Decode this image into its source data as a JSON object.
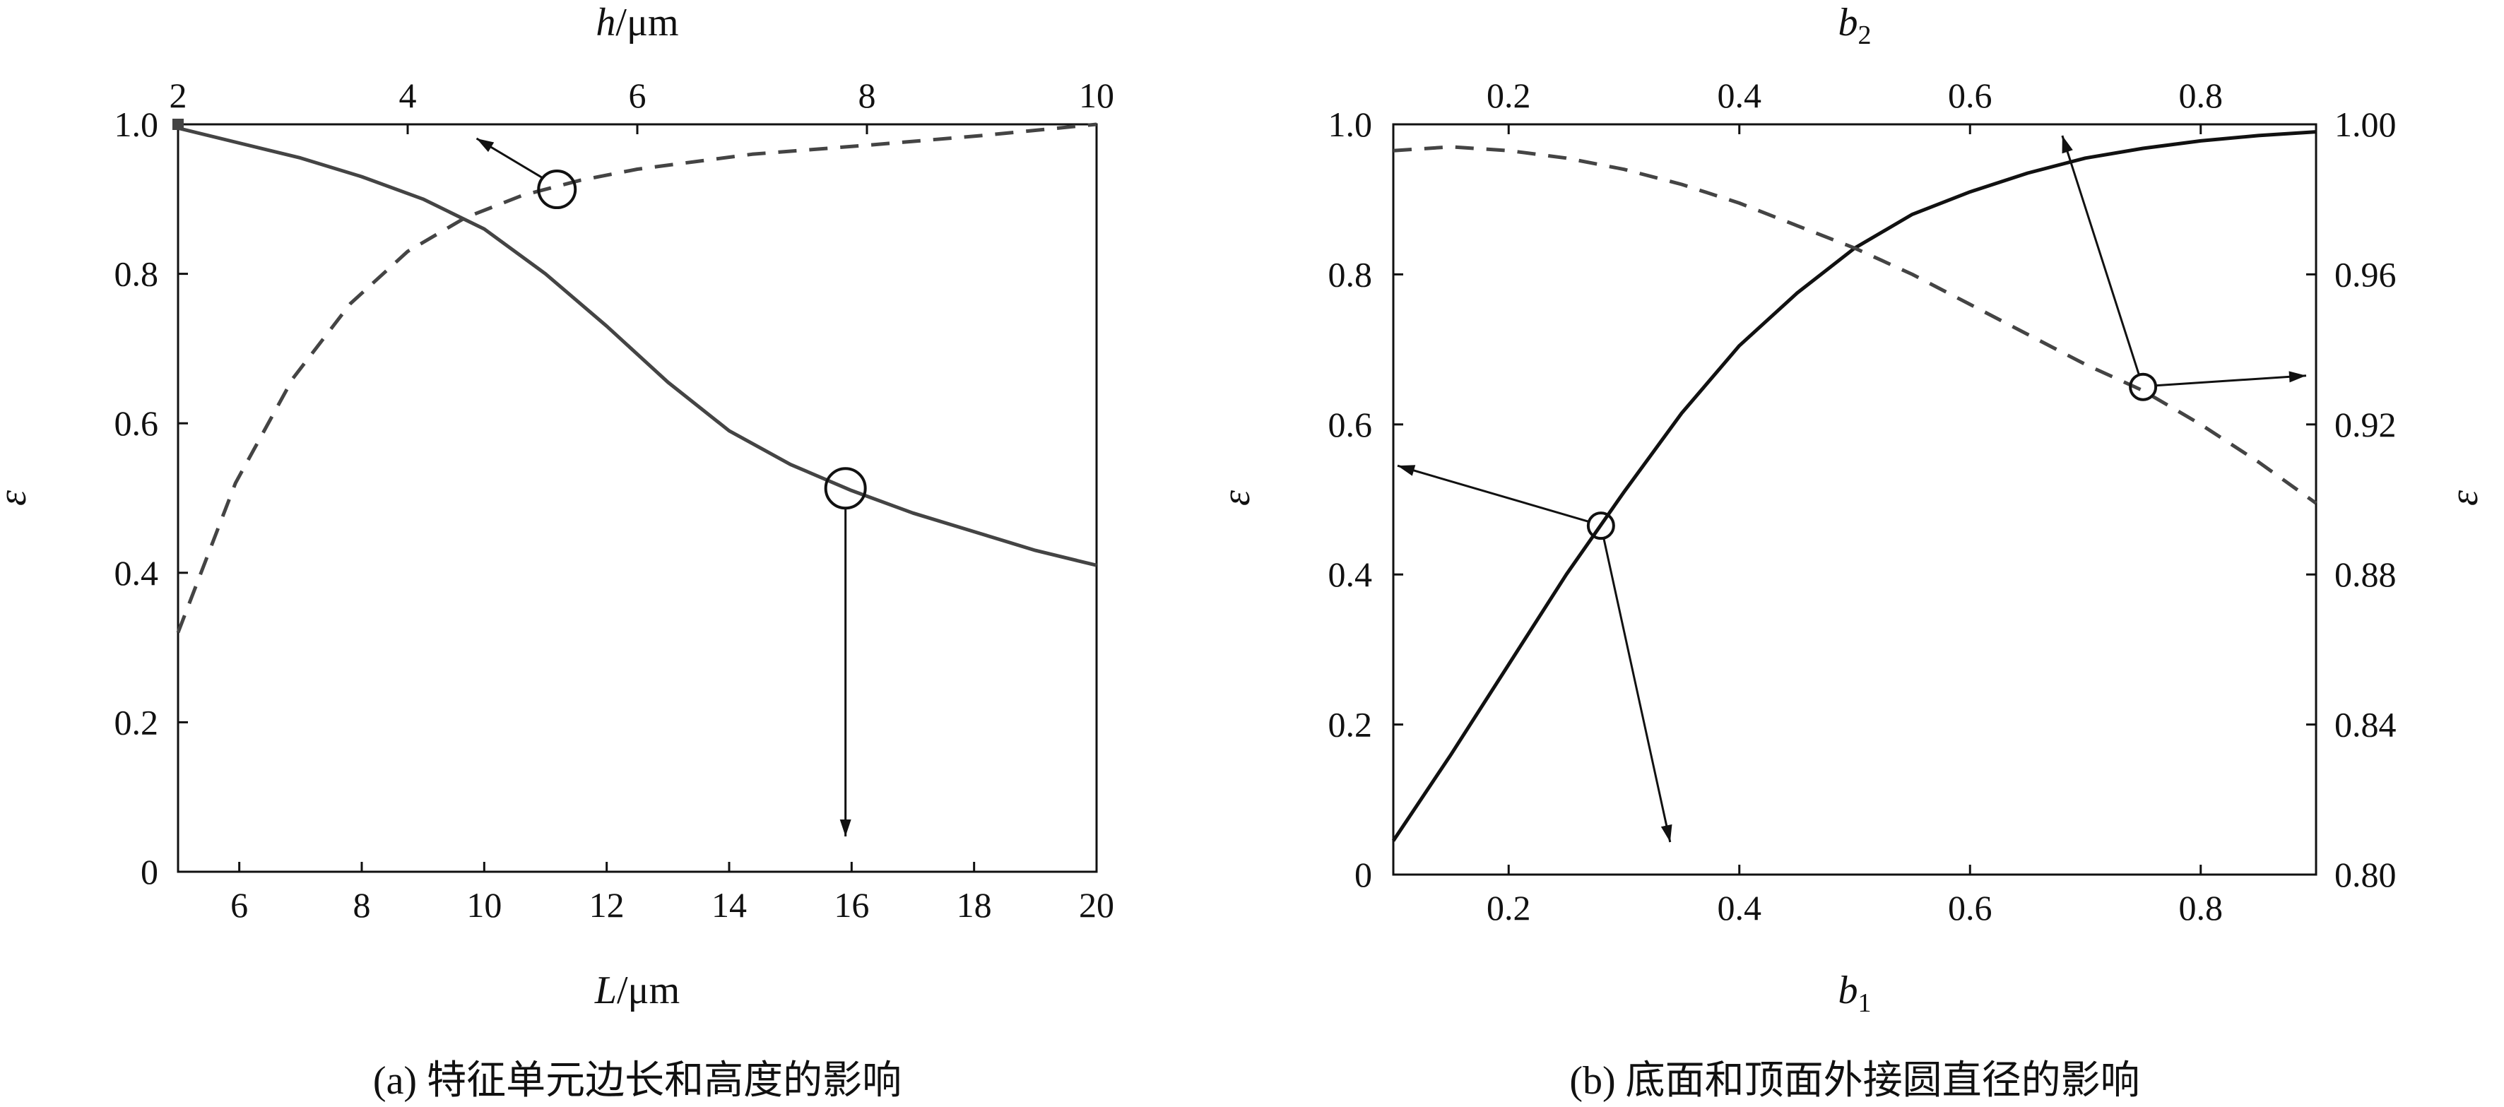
{
  "captions": {
    "a": "(a) 特征单元边长和高度的影响",
    "b": "(b) 底面和顶面外接圆直径的影响"
  },
  "chart_data": [
    {
      "type": "line",
      "panel": "a",
      "xlabel": "L/μm",
      "xlabel_parts": {
        "var": "L",
        "unit": "/μm"
      },
      "x2label": "h/μm",
      "x2label_parts": {
        "var": "h",
        "unit": "/μm"
      },
      "ylabel": "ε",
      "xlim": [
        5,
        20
      ],
      "x_ticks": [
        6,
        8,
        10,
        12,
        14,
        16,
        18,
        20
      ],
      "x2lim": [
        2,
        10
      ],
      "x2_ticks": [
        2,
        4,
        6,
        8,
        10
      ],
      "ylim": [
        0,
        1.0
      ],
      "y_ticks": [
        "0",
        "0.2",
        "0.4",
        "0.6",
        "0.8",
        "1.0"
      ],
      "series": [
        {
          "axis": "bottom",
          "style": "solid",
          "x": [
            5,
            6,
            7,
            8,
            9,
            10,
            11,
            12,
            13,
            14,
            15,
            16,
            17,
            18,
            19,
            20
          ],
          "y": [
            0.995,
            0.975,
            0.955,
            0.93,
            0.9,
            0.86,
            0.8,
            0.73,
            0.655,
            0.59,
            0.545,
            0.51,
            0.48,
            0.455,
            0.43,
            0.41
          ]
        },
        {
          "axis": "top",
          "style": "dashed",
          "x": [
            2,
            2.5,
            3,
            3.5,
            4,
            4.5,
            5,
            5.5,
            6,
            7,
            8,
            9,
            10
          ],
          "y": [
            0.32,
            0.52,
            0.66,
            0.76,
            0.83,
            0.875,
            0.905,
            0.925,
            0.94,
            0.96,
            0.972,
            0.985,
            1.0
          ]
        }
      ],
      "markers": [
        {
          "series": 1,
          "x": 5.3,
          "y": 0.913,
          "arrow_to": {
            "axis": "top",
            "x": 4.6
          }
        },
        {
          "series": 0,
          "x": 15.9,
          "y": 0.513,
          "arrow_to": {
            "axis": "bottom",
            "x": 15.9
          }
        }
      ]
    },
    {
      "type": "line",
      "panel": "b",
      "xlabel": "b1",
      "xlabel_parts": {
        "var": "b",
        "sub": "1"
      },
      "x2label": "b2",
      "x2label_parts": {
        "var": "b",
        "sub": "2"
      },
      "ylabel": "ε",
      "y2label": "ε",
      "xlim": [
        0.1,
        0.9
      ],
      "x_ticks": [
        "0.2",
        "0.4",
        "0.6",
        "0.8"
      ],
      "x2lim": [
        0.1,
        0.9
      ],
      "x2_ticks": [
        "0.2",
        "0.4",
        "0.6",
        "0.8"
      ],
      "ylim": [
        0,
        1.0
      ],
      "y_ticks": [
        "0",
        "0.2",
        "0.4",
        "0.6",
        "0.8",
        "1.0"
      ],
      "y2lim": [
        0.8,
        1.0
      ],
      "y2_ticks": [
        "0.80",
        "0.84",
        "0.88",
        "0.92",
        "0.96",
        "1.00"
      ],
      "series": [
        {
          "axis": "bottom-left",
          "style": "solid",
          "x": [
            0.1,
            0.15,
            0.2,
            0.25,
            0.3,
            0.35,
            0.4,
            0.45,
            0.5,
            0.55,
            0.6,
            0.65,
            0.7,
            0.75,
            0.8,
            0.85,
            0.9
          ],
          "y": [
            0.045,
            0.16,
            0.28,
            0.4,
            0.51,
            0.615,
            0.705,
            0.775,
            0.835,
            0.88,
            0.91,
            0.935,
            0.955,
            0.968,
            0.978,
            0.985,
            0.99
          ]
        },
        {
          "axis": "top-right",
          "style": "dashed",
          "x": [
            0.1,
            0.15,
            0.2,
            0.25,
            0.3,
            0.35,
            0.4,
            0.45,
            0.5,
            0.55,
            0.6,
            0.65,
            0.7,
            0.75,
            0.8,
            0.85,
            0.9
          ],
          "y": [
            0.993,
            0.994,
            0.993,
            0.991,
            0.988,
            0.984,
            0.979,
            0.973,
            0.967,
            0.96,
            0.952,
            0.944,
            0.936,
            0.929,
            0.92,
            0.91,
            0.899
          ]
        }
      ],
      "markers": [
        {
          "series": 0,
          "x": 0.28,
          "y": 0.465,
          "arrows_to": [
            {
              "side": "left"
            },
            {
              "side": "bottom"
            }
          ]
        },
        {
          "series": 1,
          "x": 0.75,
          "y2": 0.93,
          "arrows_to": [
            {
              "side": "top"
            },
            {
              "side": "right"
            }
          ]
        }
      ]
    }
  ]
}
